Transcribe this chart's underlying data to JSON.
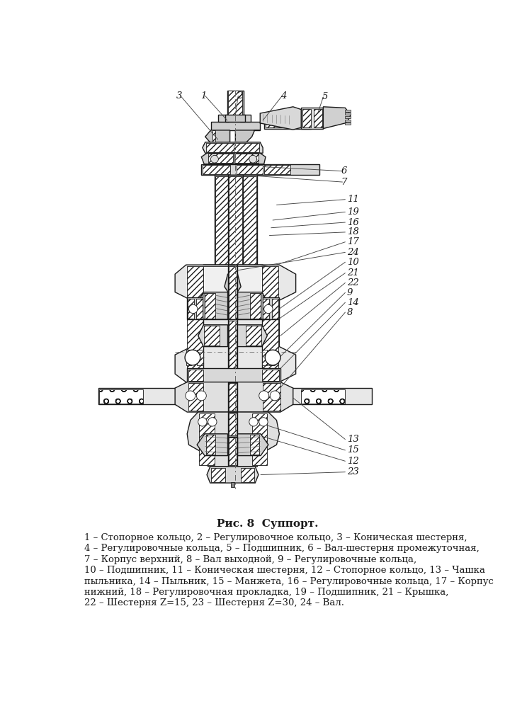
{
  "title": "Рис. 8  Суппорт.",
  "caption_lines": [
    "1 – Стопорное кольцо, 2 – Регулировочное кольцо, 3 – Коническая шестерня,",
    "4 – Регулировочные кольца, 5 – Подшипник, 6 – Вал-шестерня промежуточная,",
    "7 – Корпус верхний, 8 – Вал выходной, 9 – Регулировочные кольца,",
    "10 – Подшипник, 11 – Коническая шестерня, 12 – Стопорное кольцо, 13 – Чашка",
    "пыльника, 14 – Пыльник, 15 – Манжета, 16 – Регулировочные кольца, 17 – Корпус",
    "нижний, 18 – Регулировочная прокладка, 19 – Подшипник, 21 – Крышка,",
    "22 – Шестерня Z=15, 23 – Шестерня Z=30, 24 – Вал."
  ],
  "bg_color": "#ffffff",
  "dc": "#1a1a1a",
  "lc": "#1a1a1a"
}
